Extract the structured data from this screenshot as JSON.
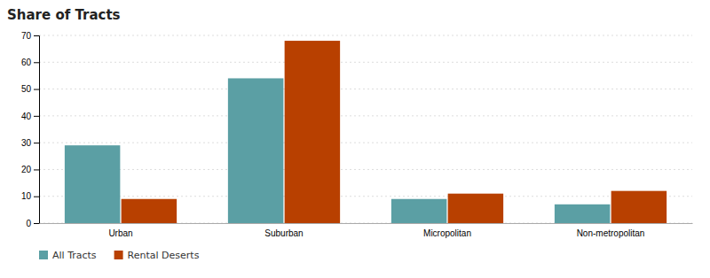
{
  "chart_data": {
    "type": "bar",
    "title": "Share of Tracts",
    "categories": [
      "Urban",
      "Suburban",
      "Micropolitan",
      "Non-metropolitan"
    ],
    "series": [
      {
        "name": "All Tracts",
        "color": "#5b9fa4",
        "values": [
          29,
          54,
          9,
          7
        ]
      },
      {
        "name": "Rental Deserts",
        "color": "#b84000",
        "values": [
          9,
          68,
          11,
          12
        ]
      }
    ],
    "ylim": [
      0,
      70
    ],
    "yticks": [
      0,
      10,
      20,
      30,
      40,
      50,
      60,
      70
    ],
    "grid": true,
    "legend": "bottom"
  }
}
